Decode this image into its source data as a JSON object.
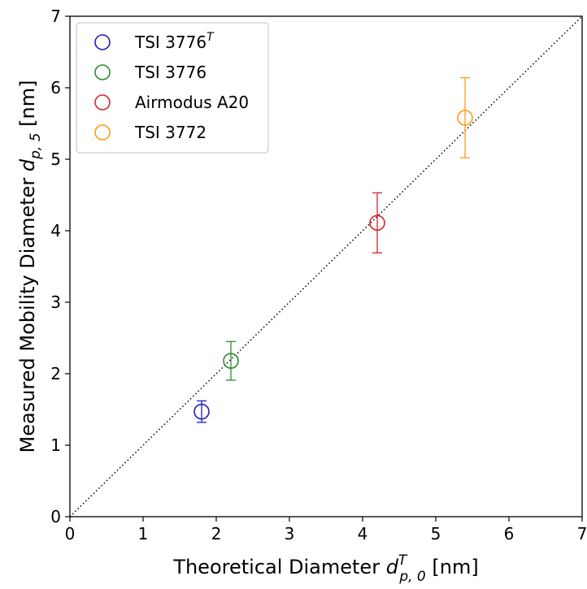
{
  "chart_data": {
    "type": "scatter",
    "title": "",
    "xlabel": {
      "prefix": "Theoretical Diameter ",
      "symbol": "d",
      "sup": "T",
      "sub": "p, 0",
      "suffix": " [nm]"
    },
    "ylabel": {
      "prefix": "Measured Mobility Diameter ",
      "symbol": "d",
      "sub": "p, 5",
      "suffix": " [nm]"
    },
    "xlim": [
      0,
      7
    ],
    "ylim": [
      0,
      7
    ],
    "xticks": [
      "0",
      "1",
      "2",
      "3",
      "4",
      "5",
      "6",
      "7"
    ],
    "yticks": [
      "0",
      "1",
      "2",
      "3",
      "4",
      "5",
      "6",
      "7"
    ],
    "grid": false,
    "reference_line": {
      "style": "dotted",
      "x": [
        0,
        7
      ],
      "y": [
        0,
        7
      ],
      "color": "#000000"
    },
    "legend": {
      "placement": "upper-left"
    },
    "series": [
      {
        "name": "TSI 3776",
        "name_sup": "T",
        "color": "#1f1fbf",
        "x": [
          1.8
        ],
        "y": [
          1.47
        ],
        "yerr": [
          0.15
        ]
      },
      {
        "name": "TSI 3776",
        "color": "#2e8b2e",
        "x": [
          2.2
        ],
        "y": [
          2.18
        ],
        "yerr": [
          0.27
        ]
      },
      {
        "name": "Airmodus A20",
        "color": "#d62728",
        "x": [
          4.2
        ],
        "y": [
          4.11
        ],
        "yerr": [
          0.42
        ]
      },
      {
        "name": "TSI 3772",
        "color": "#ff9a16",
        "x": [
          5.4
        ],
        "y": [
          5.58
        ],
        "yerr": [
          0.56
        ]
      }
    ]
  }
}
